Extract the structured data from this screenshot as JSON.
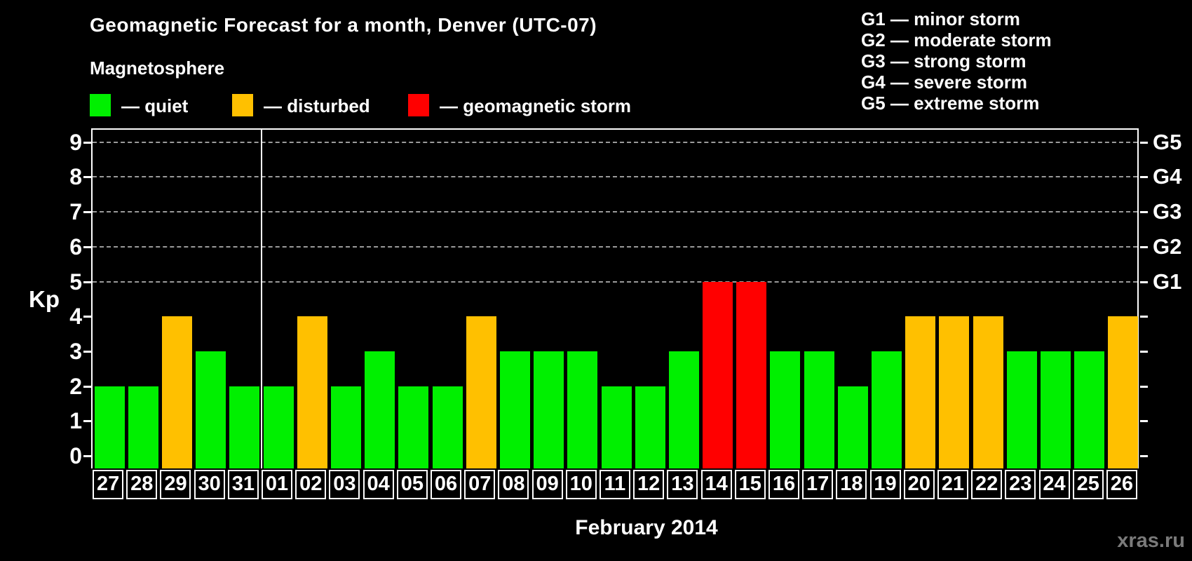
{
  "title": "Geomagnetic Forecast for a month, Denver (UTC-07)",
  "subtitle": "Magnetosphere",
  "legend": {
    "items": [
      {
        "key": "quiet",
        "label": "— quiet",
        "color": "#00f000"
      },
      {
        "key": "disturbed",
        "label": "— disturbed",
        "color": "#ffc000"
      },
      {
        "key": "storm",
        "label": "— geomagnetic storm",
        "color": "#ff0000"
      }
    ]
  },
  "g_legend": {
    "lines": [
      "G1 — minor storm",
      "G2 — moderate storm",
      "G3 — strong storm",
      "G4 — severe storm",
      "G5 — extreme storm"
    ]
  },
  "watermark": "xras.ru",
  "chart_data": {
    "type": "bar",
    "title": "Geomagnetic Forecast for a month, Denver (UTC-07)",
    "xlabel": "February 2014",
    "ylabel": "Kp",
    "ylim": [
      0,
      9.4
    ],
    "y_ticks": [
      0,
      1,
      2,
      3,
      4,
      5,
      6,
      7,
      8,
      9
    ],
    "gridlines_at": [
      5,
      6,
      7,
      8,
      9
    ],
    "grid_style": "dashed gray horizontal lines at storm levels",
    "legend_position": "top",
    "right_axis_labels": [
      {
        "kp": 5,
        "label": "G1"
      },
      {
        "kp": 6,
        "label": "G2"
      },
      {
        "kp": 7,
        "label": "G3"
      },
      {
        "kp": 8,
        "label": "G4"
      },
      {
        "kp": 9,
        "label": "G5"
      }
    ],
    "categories": [
      "27",
      "28",
      "29",
      "30",
      "31",
      "01",
      "02",
      "03",
      "04",
      "05",
      "06",
      "07",
      "08",
      "09",
      "10",
      "11",
      "12",
      "13",
      "14",
      "15",
      "16",
      "17",
      "18",
      "19",
      "20",
      "21",
      "22",
      "23",
      "24",
      "25",
      "26"
    ],
    "values": [
      2,
      2,
      4,
      3,
      2,
      2,
      4,
      2,
      3,
      2,
      2,
      4,
      3,
      3,
      3,
      2,
      2,
      3,
      5,
      5,
      3,
      3,
      2,
      3,
      4,
      4,
      4,
      3,
      3,
      3,
      4
    ],
    "statuses": [
      "quiet",
      "quiet",
      "disturbed",
      "quiet",
      "quiet",
      "quiet",
      "disturbed",
      "quiet",
      "quiet",
      "quiet",
      "quiet",
      "disturbed",
      "quiet",
      "quiet",
      "quiet",
      "quiet",
      "quiet",
      "quiet",
      "storm",
      "storm",
      "quiet",
      "quiet",
      "quiet",
      "quiet",
      "disturbed",
      "disturbed",
      "disturbed",
      "quiet",
      "quiet",
      "quiet",
      "disturbed"
    ],
    "status_colors": {
      "quiet": "#00f000",
      "disturbed": "#ffc000",
      "storm": "#ff0000"
    },
    "month_boundary_before_category": "01"
  }
}
